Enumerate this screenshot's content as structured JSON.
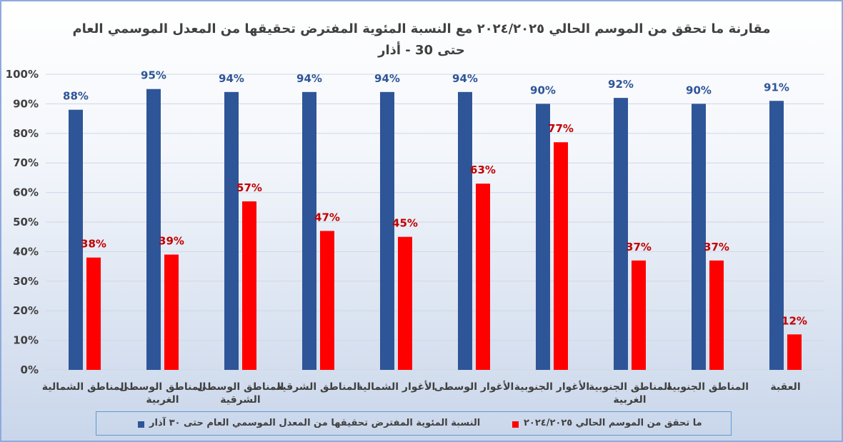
{
  "chart_data": {
    "type": "bar",
    "title_line1": "مقارنة ما تحقق من الموسم الحالي ٢٠٢٤/٢٠٢٥ مع النسبة المئوية المفترض تحقيقها من المعدل الموسمي العام",
    "title_line2": "حتى 30 - أذار",
    "categories": [
      [
        "المناطق الشمالية"
      ],
      [
        "المناطق الوسطى",
        "الغربية"
      ],
      [
        "المناطق الوسطى",
        "الشرقية"
      ],
      [
        "المناطق الشرقية"
      ],
      [
        "الأغوار الشمالية"
      ],
      [
        "الأغوار الوسطى"
      ],
      [
        "الأغوار الجنوبية"
      ],
      [
        "المناطق الجنوبية",
        "الغربية"
      ],
      [
        "المناطق الجنوبية"
      ],
      [
        "العقبة"
      ]
    ],
    "ylim": [
      0,
      100
    ],
    "yticks": [
      "0%",
      "10%",
      "20%",
      "30%",
      "40%",
      "50%",
      "60%",
      "70%",
      "80%",
      "90%",
      "100%"
    ],
    "grid": true,
    "legend_position": "bottom",
    "series": [
      {
        "name": "النسبة المئوية المفترض تحقيقها من المعدل الموسمي العام حتى ٣٠ آذار",
        "color": "#2e5597",
        "values": [
          88,
          95,
          94,
          94,
          94,
          94,
          90,
          92,
          90,
          91
        ]
      },
      {
        "name": "ما تحقق من الموسم الحالي ٢٠٢٤/٢٠٢٥",
        "color": "#ff0000",
        "values": [
          38,
          39,
          57,
          47,
          45,
          63,
          77,
          37,
          37,
          12
        ]
      }
    ]
  }
}
